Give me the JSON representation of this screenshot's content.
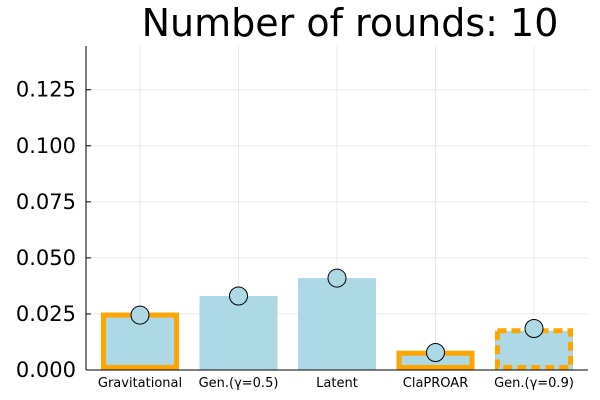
{
  "chart_data": {
    "type": "bar",
    "title": "Number of rounds: 10",
    "xlabel": "",
    "ylabel": "",
    "categories": [
      "Gravitational",
      "Gen.(γ=0.5)",
      "Latent",
      "ClaPROAR",
      "Gen.(γ=0.9)"
    ],
    "values": [
      0.0245,
      0.033,
      0.041,
      0.0075,
      0.0175
    ],
    "markers": [
      0.0245,
      0.033,
      0.041,
      0.0078,
      0.0185
    ],
    "error_bars": [
      0.001,
      0.0015,
      0.0015,
      0.0007,
      0.0008
    ],
    "outline": [
      "solid",
      "none",
      "none",
      "solid",
      "dashed"
    ],
    "ylim": [
      0,
      0.1445
    ],
    "yticks": [
      "0.000",
      "0.025",
      "0.050",
      "0.075",
      "0.100",
      "0.125"
    ],
    "ytick_values": [
      0,
      0.025,
      0.05,
      0.075,
      0.1,
      0.125
    ],
    "grid": true,
    "legend": "none",
    "colors": {
      "bar_fill": "#add8e6",
      "outline": "#ffa500",
      "marker_fill": "#add8e6",
      "marker_stroke": "#000000"
    }
  }
}
